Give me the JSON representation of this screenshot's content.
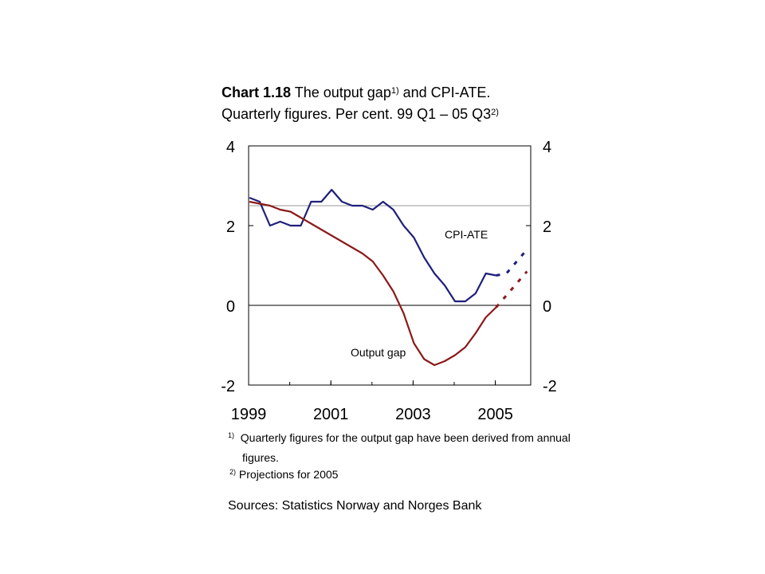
{
  "title": {
    "prefix": "Chart 1.18",
    "line1": "The output gap",
    "line1_sup": "1)",
    "line1_end": " and CPI-ATE.",
    "line2": "Quarterly figures. Per cent. 99 Q1 – 05 Q3",
    "line2_sup": "2)"
  },
  "chart_data": {
    "type": "line",
    "x_start": "1999 Q1",
    "x_ticks": [
      "1999",
      "2001",
      "2003",
      "2005"
    ],
    "y_ticks": [
      "4",
      "2",
      "0",
      "-2"
    ],
    "ylim": [
      -2,
      4
    ],
    "reference_line": 2.5,
    "series": [
      {
        "name": "CPI-ATE",
        "color": "#1f1f7a",
        "values": [
          2.7,
          2.6,
          2.0,
          2.1,
          2.0,
          2.0,
          2.6,
          2.6,
          2.9,
          2.6,
          2.5,
          2.5,
          2.4,
          2.6,
          2.4,
          2.0,
          1.7,
          1.2,
          0.8,
          0.5,
          0.1,
          0.1,
          0.3,
          0.8,
          0.75
        ],
        "projection": [
          0.75,
          0.8,
          1.1,
          1.4
        ]
      },
      {
        "name": "Output gap",
        "color": "#8b1a1a",
        "values": [
          2.6,
          2.55,
          2.5,
          2.4,
          2.35,
          2.2,
          2.05,
          1.9,
          1.75,
          1.6,
          1.45,
          1.3,
          1.1,
          0.75,
          0.35,
          -0.2,
          -0.95,
          -1.35,
          -1.5,
          -1.4,
          -1.25,
          -1.05,
          -0.7,
          -0.3,
          -0.05
        ],
        "projection": [
          -0.05,
          0.25,
          0.55,
          0.85
        ]
      }
    ]
  },
  "labels": {
    "cpi": "CPI-ATE",
    "gap": "Output gap"
  },
  "notes": {
    "n1_mark": "1)",
    "n1_line1": "Quarterly figures for the output gap have been derived from annual",
    "n1_line2": "figures.",
    "n2_mark": "2)",
    "n2_text": "Projections for 2005"
  },
  "sources": "Sources: Statistics Norway and Norges Bank"
}
